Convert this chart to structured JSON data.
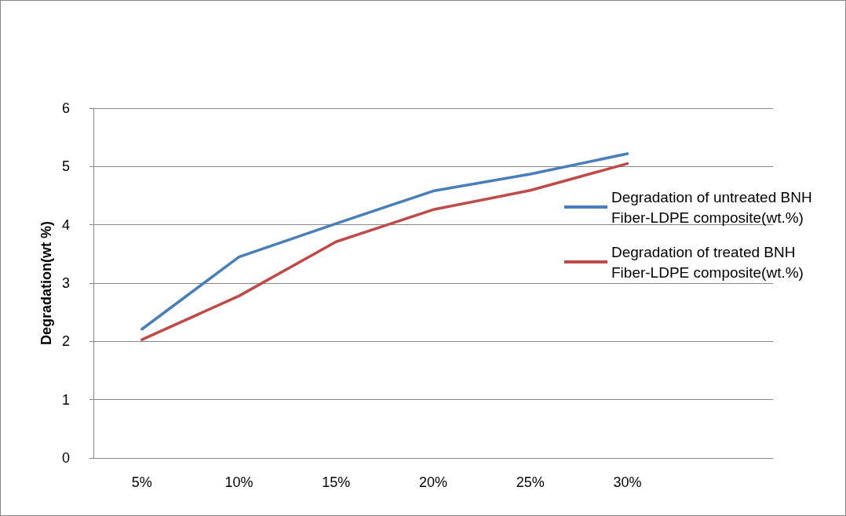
{
  "chart_data": {
    "type": "line",
    "ylabel": "Degradation(wt %)",
    "categories": [
      "5%",
      "10%",
      "15%",
      "20%",
      "25%",
      "30%",
      null
    ],
    "series": [
      {
        "name": "Degradation of untreated BNH Fiber-LDPE composite(wt.%)",
        "color": "#4a7ebb",
        "values": [
          2.21,
          3.45,
          4.02,
          4.58,
          4.87,
          5.22,
          null
        ]
      },
      {
        "name": "Degradation of treated BNH Fiber-LDPE composite(wt.%)",
        "color": "#be4b48",
        "values": [
          2.03,
          2.78,
          3.71,
          4.26,
          4.59,
          5.05,
          null
        ]
      }
    ],
    "ylim": [
      0,
      6
    ],
    "yticks": [
      0,
      1,
      2,
      3,
      4,
      5,
      6
    ],
    "grid": "y",
    "legend": "right",
    "marker": "none",
    "line_style": "solid"
  }
}
